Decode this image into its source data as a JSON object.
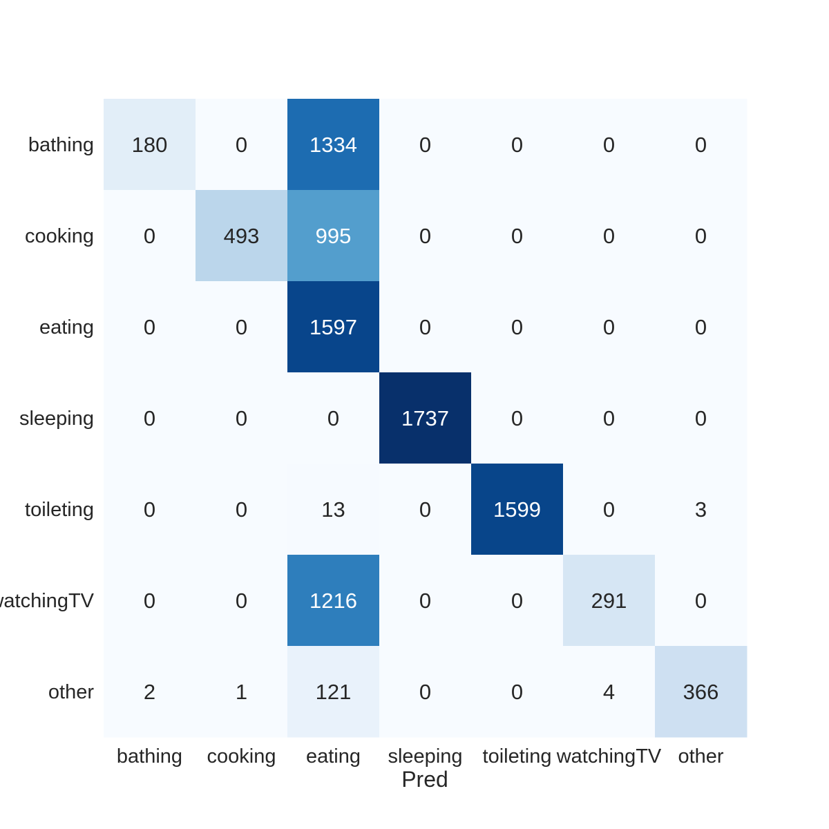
{
  "chart_data": {
    "type": "heatmap",
    "title": "",
    "xlabel": "Pred",
    "ylabel": "",
    "x_categories": [
      "bathing",
      "cooking",
      "eating",
      "sleeping",
      "toileting",
      "watchingTV",
      "other"
    ],
    "y_categories": [
      "bathing",
      "cooking",
      "eating",
      "sleeping",
      "toileting",
      "watchingTV",
      "other"
    ],
    "values": [
      [
        180,
        0,
        1334,
        0,
        0,
        0,
        0
      ],
      [
        0,
        493,
        995,
        0,
        0,
        0,
        0
      ],
      [
        0,
        0,
        1597,
        0,
        0,
        0,
        0
      ],
      [
        0,
        0,
        0,
        1737,
        0,
        0,
        0
      ],
      [
        0,
        0,
        13,
        0,
        1599,
        0,
        3
      ],
      [
        0,
        0,
        1216,
        0,
        0,
        291,
        0
      ],
      [
        2,
        1,
        121,
        0,
        0,
        4,
        366
      ]
    ],
    "colormap": "Blues",
    "vmin": 0,
    "vmax": 1737,
    "colorbar": false,
    "grid": false
  }
}
